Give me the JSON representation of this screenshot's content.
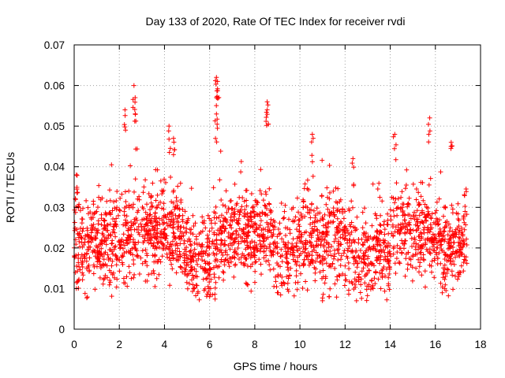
{
  "chart_data": {
    "type": "scatter",
    "title": "Day 133 of 2020, Rate Of TEC Index for receiver rvdi",
    "xlabel": "GPS time / hours",
    "ylabel": "ROTI / TECUs",
    "xlim": [
      0,
      18
    ],
    "ylim": [
      0,
      0.07
    ],
    "xticks": [
      0,
      2,
      4,
      6,
      8,
      10,
      12,
      14,
      16,
      18
    ],
    "xtick_labels": [
      "0",
      "2",
      "4",
      "6",
      "8",
      "10",
      "12",
      "14",
      "16",
      "18"
    ],
    "yticks": [
      0,
      0.01,
      0.02,
      0.03,
      0.04,
      0.05,
      0.06,
      0.07
    ],
    "ytick_labels": [
      "0",
      "0.01",
      "0.02",
      "0.03",
      "0.04",
      "0.05",
      "0.06",
      "0.07"
    ],
    "grid": true,
    "marker": "+",
    "color": "#ff0000",
    "data_range": {
      "start_hour": 0,
      "end_hour": 17.4
    },
    "baseline": [
      [
        0.0,
        0.022
      ],
      [
        0.5,
        0.02
      ],
      [
        1.0,
        0.02
      ],
      [
        1.5,
        0.019
      ],
      [
        2.0,
        0.02
      ],
      [
        2.5,
        0.024
      ],
      [
        3.0,
        0.024
      ],
      [
        3.5,
        0.023
      ],
      [
        4.0,
        0.024
      ],
      [
        4.5,
        0.024
      ],
      [
        5.0,
        0.019
      ],
      [
        5.5,
        0.017
      ],
      [
        6.0,
        0.015
      ],
      [
        6.5,
        0.022
      ],
      [
        7.0,
        0.024
      ],
      [
        7.5,
        0.022
      ],
      [
        8.0,
        0.022
      ],
      [
        8.5,
        0.024
      ],
      [
        9.0,
        0.018
      ],
      [
        9.5,
        0.017
      ],
      [
        10.0,
        0.022
      ],
      [
        10.5,
        0.022
      ],
      [
        11.0,
        0.022
      ],
      [
        11.5,
        0.022
      ],
      [
        12.0,
        0.022
      ],
      [
        12.5,
        0.018
      ],
      [
        13.0,
        0.016
      ],
      [
        13.5,
        0.02
      ],
      [
        14.0,
        0.019
      ],
      [
        14.5,
        0.026
      ],
      [
        15.0,
        0.022
      ],
      [
        15.5,
        0.023
      ],
      [
        16.0,
        0.022
      ],
      [
        16.5,
        0.02
      ],
      [
        17.0,
        0.02
      ],
      [
        17.4,
        0.022
      ]
    ],
    "peaks": [
      {
        "x": 0.1,
        "y": 0.038
      },
      {
        "x": 2.25,
        "y": 0.054
      },
      {
        "x": 2.65,
        "y": 0.06
      },
      {
        "x": 2.7,
        "y": 0.057
      },
      {
        "x": 4.2,
        "y": 0.05
      },
      {
        "x": 4.4,
        "y": 0.047
      },
      {
        "x": 6.3,
        "y": 0.062
      },
      {
        "x": 6.35,
        "y": 0.061
      },
      {
        "x": 6.3,
        "y": 0.057
      },
      {
        "x": 6.3,
        "y": 0.053
      },
      {
        "x": 8.55,
        "y": 0.056
      },
      {
        "x": 8.55,
        "y": 0.054
      },
      {
        "x": 10.55,
        "y": 0.048
      },
      {
        "x": 12.35,
        "y": 0.042
      },
      {
        "x": 14.2,
        "y": 0.048
      },
      {
        "x": 15.75,
        "y": 0.052
      },
      {
        "x": 16.7,
        "y": 0.046
      }
    ],
    "lows": [
      {
        "x": 0.1,
        "y": 0.01
      },
      {
        "x": 5.3,
        "y": 0.01
      },
      {
        "x": 6.0,
        "y": 0.008
      },
      {
        "x": 9.0,
        "y": 0.009
      },
      {
        "x": 11.0,
        "y": 0.007
      },
      {
        "x": 11.3,
        "y": 0.008
      },
      {
        "x": 16.4,
        "y": 0.01
      }
    ]
  }
}
